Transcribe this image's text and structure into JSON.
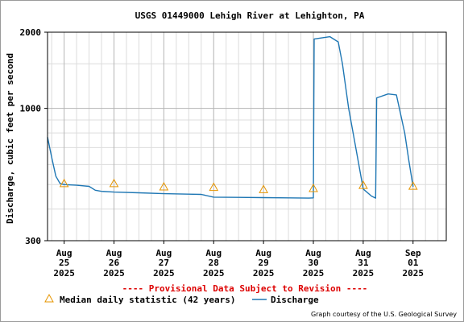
{
  "chart_data": {
    "type": "line",
    "title": "USGS 01449000 Lehigh River at Lehighton, PA",
    "ylabel": "Discharge, cubic feet per second",
    "xlabel": "",
    "y_scale": "log",
    "ylim": [
      300,
      2000
    ],
    "y_ticks": [
      {
        "value": 300,
        "label": "300"
      },
      {
        "value": 1000,
        "label": "1000"
      },
      {
        "value": 2000,
        "label": "2000"
      }
    ],
    "x_range": [
      "2025-08-24T16:00",
      "2025-09-01T16:00"
    ],
    "x_ticks": [
      {
        "t": "2025-08-25T00:00",
        "mon": "Aug",
        "day": "25",
        "year": "2025"
      },
      {
        "t": "2025-08-26T00:00",
        "mon": "Aug",
        "day": "26",
        "year": "2025"
      },
      {
        "t": "2025-08-27T00:00",
        "mon": "Aug",
        "day": "27",
        "year": "2025"
      },
      {
        "t": "2025-08-28T00:00",
        "mon": "Aug",
        "day": "28",
        "year": "2025"
      },
      {
        "t": "2025-08-29T00:00",
        "mon": "Aug",
        "day": "29",
        "year": "2025"
      },
      {
        "t": "2025-08-30T00:00",
        "mon": "Aug",
        "day": "30",
        "year": "2025"
      },
      {
        "t": "2025-08-31T00:00",
        "mon": "Aug",
        "day": "31",
        "year": "2025"
      },
      {
        "t": "2025-09-01T00:00",
        "mon": "Sep",
        "day": "01",
        "year": "2025"
      }
    ],
    "grid": true,
    "series": [
      {
        "name": "Discharge",
        "color": "#1f77b4",
        "points": [
          [
            "2025-08-24T16:00",
            770
          ],
          [
            "2025-08-24T18:00",
            640
          ],
          [
            "2025-08-24T20:00",
            540
          ],
          [
            "2025-08-24T22:00",
            505
          ],
          [
            "2025-08-25T00:00",
            500
          ],
          [
            "2025-08-25T06:00",
            497
          ],
          [
            "2025-08-25T12:00",
            492
          ],
          [
            "2025-08-25T15:00",
            475
          ],
          [
            "2025-08-25T18:00",
            470
          ],
          [
            "2025-08-26T00:00",
            467
          ],
          [
            "2025-08-26T12:00",
            464
          ],
          [
            "2025-08-27T00:00",
            460
          ],
          [
            "2025-08-27T12:00",
            458
          ],
          [
            "2025-08-27T18:00",
            457
          ],
          [
            "2025-08-28T00:00",
            446
          ],
          [
            "2025-08-28T12:00",
            445
          ],
          [
            "2025-08-29T00:00",
            444
          ],
          [
            "2025-08-29T12:00",
            443
          ],
          [
            "2025-08-29T22:00",
            442
          ],
          [
            "2025-08-30T00:00",
            443
          ],
          [
            "2025-08-30T00:24",
            1880
          ],
          [
            "2025-08-30T08:00",
            1920
          ],
          [
            "2025-08-30T12:00",
            1830
          ],
          [
            "2025-08-30T14:00",
            1500
          ],
          [
            "2025-08-30T17:00",
            1000
          ],
          [
            "2025-08-30T20:00",
            730
          ],
          [
            "2025-08-31T00:00",
            480
          ],
          [
            "2025-08-31T04:00",
            450
          ],
          [
            "2025-08-31T06:00",
            442
          ],
          [
            "2025-08-31T06:30",
            1100
          ],
          [
            "2025-08-31T12:00",
            1140
          ],
          [
            "2025-08-31T16:00",
            1130
          ],
          [
            "2025-08-31T20:00",
            800
          ],
          [
            "2025-08-31T22:00",
            620
          ],
          [
            "2025-09-01T00:00",
            490
          ]
        ]
      },
      {
        "name": "Median daily statistic (42 years)",
        "color": "#e69500",
        "marker": "triangle",
        "points": [
          [
            "2025-08-25T00:00",
            505
          ],
          [
            "2025-08-26T00:00",
            505
          ],
          [
            "2025-08-27T00:00",
            490
          ],
          [
            "2025-08-28T00:00",
            488
          ],
          [
            "2025-08-29T00:00",
            478
          ],
          [
            "2025-08-30T00:00",
            483
          ],
          [
            "2025-08-31T00:00",
            497
          ],
          [
            "2025-09-01T00:00",
            493
          ]
        ]
      }
    ]
  },
  "notice": "---- Provisional Data Subject to Revision ----",
  "notice_color": "#dd0000",
  "legend": {
    "median_label": "Median daily statistic (42 years)",
    "discharge_label": "Discharge"
  },
  "credit": "Graph courtesy of the U.S. Geological Survey"
}
